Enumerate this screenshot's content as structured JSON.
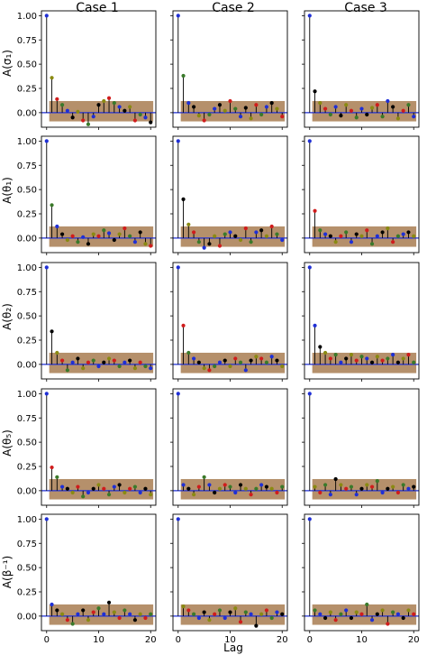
{
  "colors": {
    "band": "#9c6b3a",
    "zero_line": "#1f2fd6",
    "stem": "#000000",
    "markers": [
      "#000000",
      "#d01c1c",
      "#1f2fd6",
      "#8a8a12",
      "#3a7a2a"
    ]
  },
  "column_titles": [
    "Case 1",
    "Case 2",
    "Case 3"
  ],
  "row_labels": [
    "A(σ₁)",
    "A(θ₁)",
    "A(θ₂)",
    "A(θ₅)",
    "A(β⁻¹)"
  ],
  "x_label": "Lag",
  "x_ticks": [
    "0",
    "10",
    "20"
  ],
  "y_ticks": [
    "0.00",
    "0.25",
    "0.50",
    "0.75",
    "1.00"
  ],
  "chart_data": {
    "type": "scatter",
    "plot_style": "autocorrelation stem plot grid (5 rows x 3 columns)",
    "xlim": [
      -1,
      21
    ],
    "ylim": [
      -0.15,
      1.05
    ],
    "x": [
      0,
      1,
      2,
      3,
      4,
      5,
      6,
      7,
      8,
      9,
      10,
      11,
      12,
      13,
      14,
      15,
      16,
      17,
      18,
      19,
      20
    ],
    "confidence_band": [
      -0.09,
      0.12
    ],
    "grid": false,
    "legend": "none",
    "panels": [
      {
        "row": 0,
        "col": 0,
        "values": [
          1.0,
          0.36,
          0.14,
          0.08,
          0.02,
          -0.05,
          0.01,
          -0.08,
          -0.12,
          -0.04,
          0.08,
          0.12,
          0.15,
          0.1,
          0.06,
          0.02,
          0.06,
          -0.08,
          -0.02,
          -0.05,
          -0.1
        ]
      },
      {
        "row": 0,
        "col": 1,
        "values": [
          1.0,
          0.38,
          0.1,
          0.06,
          -0.03,
          -0.08,
          -0.02,
          0.04,
          0.08,
          0.02,
          0.12,
          0.04,
          -0.04,
          0.05,
          -0.06,
          0.08,
          -0.02,
          0.06,
          0.1,
          0.04,
          -0.04
        ]
      },
      {
        "row": 0,
        "col": 2,
        "values": [
          1.0,
          0.22,
          0.1,
          0.04,
          -0.02,
          0.06,
          -0.03,
          0.08,
          0.02,
          -0.05,
          0.04,
          -0.02,
          0.05,
          0.08,
          -0.04,
          0.12,
          0.06,
          -0.06,
          0.02,
          0.08,
          -0.04
        ]
      },
      {
        "row": 1,
        "col": 0,
        "values": [
          1.0,
          0.34,
          0.12,
          0.04,
          -0.02,
          0.02,
          -0.04,
          0.01,
          -0.06,
          0.04,
          0.02,
          0.08,
          0.05,
          -0.02,
          0.04,
          0.1,
          0.02,
          -0.04,
          0.06,
          -0.06,
          -0.08
        ]
      },
      {
        "row": 1,
        "col": 1,
        "values": [
          1.0,
          0.4,
          0.14,
          0.06,
          -0.04,
          -0.1,
          -0.06,
          0.02,
          -0.08,
          0.04,
          0.06,
          0.02,
          -0.02,
          0.1,
          -0.04,
          0.06,
          0.08,
          0.02,
          0.12,
          0.04,
          -0.02
        ]
      },
      {
        "row": 1,
        "col": 2,
        "values": [
          1.0,
          0.28,
          0.08,
          0.04,
          0.02,
          -0.04,
          0.02,
          0.06,
          -0.04,
          0.04,
          0.02,
          0.08,
          -0.06,
          0.02,
          0.06,
          0.1,
          -0.04,
          0.02,
          0.04,
          0.06,
          0.02
        ]
      },
      {
        "row": 2,
        "col": 0,
        "values": [
          1.0,
          0.34,
          0.12,
          0.04,
          -0.06,
          0.02,
          0.06,
          -0.04,
          0.02,
          0.04,
          -0.02,
          0.02,
          0.06,
          0.04,
          -0.02,
          0.02,
          0.04,
          -0.04,
          0.02,
          -0.02,
          -0.04
        ]
      },
      {
        "row": 2,
        "col": 1,
        "values": [
          1.0,
          0.4,
          0.12,
          0.06,
          0.02,
          -0.04,
          -0.06,
          -0.02,
          0.02,
          0.04,
          -0.02,
          0.06,
          0.02,
          -0.06,
          0.04,
          0.08,
          0.06,
          0.02,
          0.08,
          0.04,
          -0.02
        ]
      },
      {
        "row": 2,
        "col": 2,
        "values": [
          1.0,
          0.4,
          0.18,
          0.12,
          0.06,
          0.1,
          0.02,
          0.06,
          0.1,
          0.04,
          0.08,
          0.06,
          0.02,
          0.08,
          0.04,
          0.06,
          0.1,
          0.02,
          0.06,
          0.1,
          0.02
        ]
      },
      {
        "row": 3,
        "col": 0,
        "values": [
          1.0,
          0.24,
          0.14,
          0.04,
          0.02,
          -0.02,
          0.04,
          -0.06,
          -0.02,
          0.02,
          0.06,
          0.02,
          -0.04,
          0.04,
          0.06,
          -0.02,
          0.02,
          0.04,
          -0.02,
          0.02,
          -0.04
        ]
      },
      {
        "row": 3,
        "col": 1,
        "values": [
          1.0,
          0.06,
          0.02,
          -0.04,
          0.04,
          0.14,
          0.06,
          -0.02,
          0.02,
          0.06,
          0.04,
          -0.02,
          0.06,
          0.02,
          -0.04,
          0.02,
          0.06,
          0.04,
          0.02,
          -0.02,
          0.04
        ]
      },
      {
        "row": 3,
        "col": 2,
        "values": [
          1.0,
          0.04,
          -0.02,
          0.06,
          -0.04,
          0.12,
          0.06,
          0.02,
          0.04,
          -0.04,
          0.02,
          0.06,
          0.04,
          0.1,
          -0.02,
          0.02,
          0.04,
          -0.02,
          0.06,
          0.02,
          0.04
        ]
      },
      {
        "row": 4,
        "col": 0,
        "values": [
          1.0,
          0.12,
          0.06,
          0.02,
          -0.04,
          -0.08,
          0.02,
          0.06,
          -0.04,
          0.04,
          0.08,
          0.02,
          0.14,
          0.04,
          -0.02,
          0.06,
          0.02,
          -0.04,
          0.02,
          -0.02,
          0.02
        ]
      },
      {
        "row": 4,
        "col": 1,
        "values": [
          1.0,
          0.1,
          0.06,
          0.02,
          -0.02,
          0.04,
          -0.04,
          0.02,
          0.06,
          -0.02,
          0.04,
          0.08,
          -0.06,
          0.04,
          0.02,
          -0.1,
          0.02,
          0.06,
          -0.02,
          0.04,
          0.02
        ]
      },
      {
        "row": 4,
        "col": 2,
        "values": [
          1.0,
          0.06,
          0.02,
          -0.02,
          0.04,
          -0.04,
          0.02,
          0.06,
          -0.02,
          0.04,
          0.02,
          0.12,
          -0.04,
          0.02,
          0.06,
          -0.08,
          0.04,
          0.02,
          -0.02,
          0.06,
          0.02
        ]
      }
    ]
  }
}
